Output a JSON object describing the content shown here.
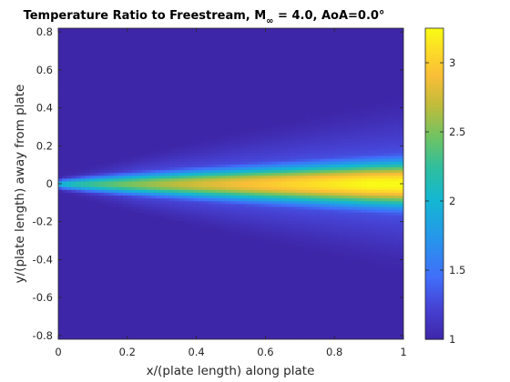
{
  "chart_data": {
    "type": "heatmap",
    "title_prefix": "Temperature Ratio to Freestream, M",
    "title_subscript": "∞",
    "title_suffix": " = 4.0, AoA=0.0°",
    "xlabel": "x/(plate length) along plate",
    "ylabel": "y/(plate length) away from plate",
    "xlim": [
      0,
      1
    ],
    "ylim": [
      -0.82,
      0.82
    ],
    "x_ticks": [
      0,
      0.2,
      0.4,
      0.6,
      0.8,
      1
    ],
    "x_tick_labels": [
      "0",
      "0.2",
      "0.4",
      "0.6",
      "0.8",
      "1"
    ],
    "y_ticks": [
      -0.8,
      -0.6,
      -0.4,
      -0.2,
      0,
      0.2,
      0.4,
      0.6,
      0.8
    ],
    "y_tick_labels": [
      "-0.8",
      "-0.6",
      "-0.4",
      "-0.2",
      "0",
      "0.2",
      "0.4",
      "0.6",
      "0.8"
    ],
    "colorbar": {
      "range": [
        1,
        3.25
      ],
      "ticks": [
        1,
        1.5,
        2,
        2.5,
        3
      ],
      "tick_labels": [
        "1",
        "1.5",
        "2",
        "2.5",
        "3"
      ],
      "colormap": "parula"
    },
    "field": {
      "freestream_value": 1.0,
      "max_value": 3.25,
      "leading_edge": [
        0,
        0
      ],
      "outer_shock_half_width_at_trailing_edge": 0.47,
      "hot_core_half_width_at_trailing_edge": 0.12
    },
    "grid": false,
    "colors": {
      "low": "#3e26a8",
      "mid": "#2eb7a0",
      "high": "#f9fb15"
    }
  }
}
